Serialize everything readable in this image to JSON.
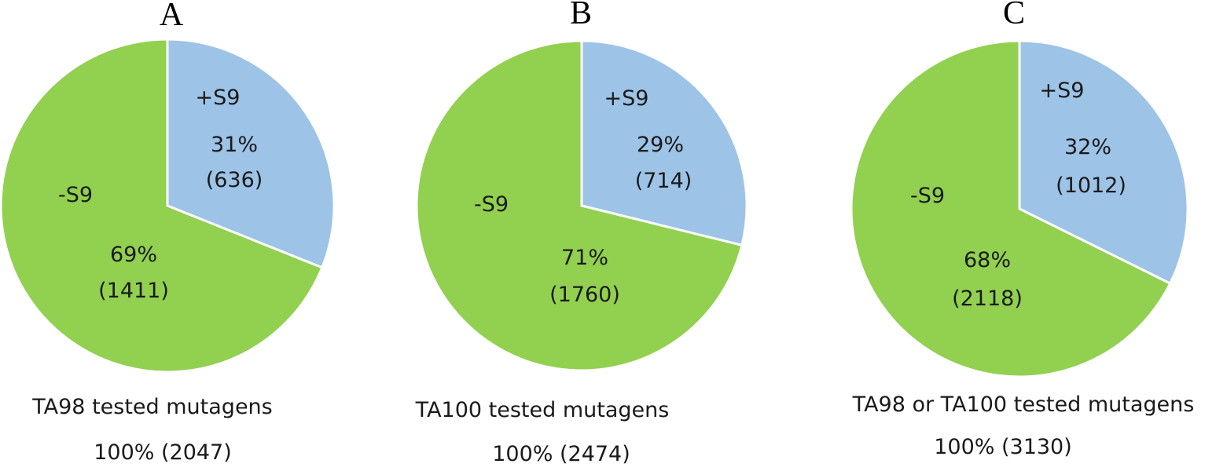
{
  "chart_data": [
    {
      "type": "pie",
      "title": "A",
      "slices": [
        {
          "name": "+S9",
          "value": 636,
          "percent": "31%",
          "count": "(636)",
          "color": "#9DC3E6"
        },
        {
          "name": "-S9",
          "value": 1411,
          "percent": "69%",
          "count": "(1411)",
          "color": "#92D050"
        }
      ],
      "caption": "TA98 tested mutagens",
      "total": "100% (2047)"
    },
    {
      "type": "pie",
      "title": "B",
      "slices": [
        {
          "name": "+S9",
          "value": 714,
          "percent": "29%",
          "count": "(714)",
          "color": "#9DC3E6"
        },
        {
          "name": "-S9",
          "value": 1760,
          "percent": "71%",
          "count": "(1760)",
          "color": "#92D050"
        }
      ],
      "caption": "TA100 tested mutagens",
      "total": "100% (2474)"
    },
    {
      "type": "pie",
      "title": "C",
      "slices": [
        {
          "name": "+S9",
          "value": 1012,
          "percent": "32%",
          "count": "(1012)",
          "color": "#9DC3E6"
        },
        {
          "name": "-S9",
          "value": 2118,
          "percent": "68%",
          "count": "(2118)",
          "color": "#92D050"
        }
      ],
      "caption": "TA98 or TA100 tested mutagens",
      "total": "100% (3130)"
    }
  ]
}
